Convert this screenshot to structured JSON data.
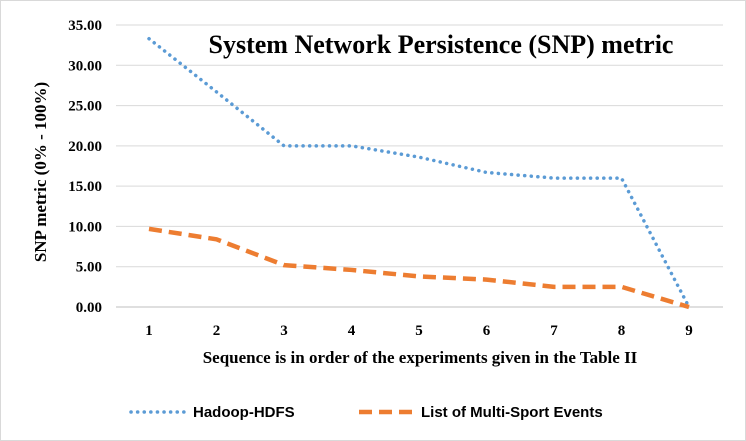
{
  "chart_data": {
    "type": "line",
    "title": "System Network Persistence (SNP) metric",
    "xlabel": "Sequence is in order of the experiments given in the Table II",
    "ylabel": "SNP metric (0% - 100%)",
    "x": [
      1,
      2,
      3,
      4,
      5,
      6,
      7,
      8,
      9
    ],
    "ylim": [
      0,
      35
    ],
    "yticks": [
      "0.00",
      "5.00",
      "10.00",
      "15.00",
      "20.00",
      "25.00",
      "30.00",
      "35.00"
    ],
    "xticks": [
      "1",
      "2",
      "3",
      "4",
      "5",
      "6",
      "7",
      "8",
      "9"
    ],
    "grid": true,
    "legend_position": "bottom",
    "series": [
      {
        "name": "Hadoop-HDFS",
        "color": "#5b9bd5",
        "style": "dotted",
        "values": [
          33.3,
          26.7,
          20.0,
          20.0,
          18.6,
          16.7,
          16.0,
          16.0,
          0.0
        ]
      },
      {
        "name": "List of Multi-Sport Events",
        "color": "#ed7d31",
        "style": "dashed",
        "values": [
          9.7,
          8.4,
          5.2,
          4.6,
          3.8,
          3.4,
          2.5,
          2.5,
          0.0
        ]
      }
    ]
  }
}
